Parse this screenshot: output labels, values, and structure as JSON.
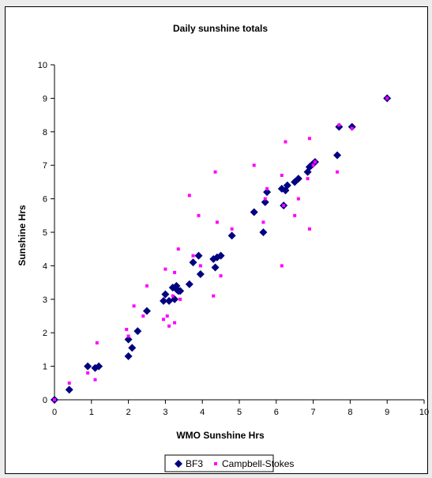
{
  "chart_data": {
    "type": "scatter",
    "title": "Daily sunshine totals",
    "xlabel": "WMO Sunshine Hrs",
    "ylabel": "Sunshine Hrs",
    "xlim": [
      0,
      10
    ],
    "ylim": [
      0,
      10
    ],
    "xticks": [
      "0",
      "1",
      "2",
      "3",
      "4",
      "5",
      "6",
      "7",
      "8",
      "9",
      "10"
    ],
    "yticks": [
      "0",
      "1",
      "2",
      "3",
      "4",
      "5",
      "6",
      "7",
      "8",
      "9",
      "10"
    ],
    "grid": false,
    "legend": "bottom",
    "series": [
      {
        "name": "BF3",
        "color": "#000080",
        "marker": "diamond",
        "points": [
          [
            0,
            0
          ],
          [
            0.4,
            0.3
          ],
          [
            0.9,
            1.0
          ],
          [
            1.1,
            0.95
          ],
          [
            1.2,
            1.0
          ],
          [
            2.0,
            1.8
          ],
          [
            2.0,
            1.3
          ],
          [
            2.1,
            1.55
          ],
          [
            2.25,
            2.05
          ],
          [
            2.5,
            2.65
          ],
          [
            2.95,
            2.95
          ],
          [
            3.0,
            3.15
          ],
          [
            3.1,
            2.95
          ],
          [
            3.2,
            3.35
          ],
          [
            3.25,
            3.0
          ],
          [
            3.3,
            3.3
          ],
          [
            3.3,
            3.4
          ],
          [
            3.35,
            3.25
          ],
          [
            3.4,
            3.25
          ],
          [
            3.65,
            3.45
          ],
          [
            3.75,
            4.1
          ],
          [
            3.9,
            4.3
          ],
          [
            3.95,
            3.75
          ],
          [
            4.3,
            4.2
          ],
          [
            4.35,
            3.95
          ],
          [
            4.4,
            4.25
          ],
          [
            4.5,
            4.3
          ],
          [
            4.8,
            4.9
          ],
          [
            5.4,
            5.6
          ],
          [
            5.65,
            5.0
          ],
          [
            5.7,
            5.9
          ],
          [
            5.75,
            6.2
          ],
          [
            6.15,
            6.3
          ],
          [
            6.2,
            5.8
          ],
          [
            6.25,
            6.25
          ],
          [
            6.3,
            6.4
          ],
          [
            6.5,
            6.5
          ],
          [
            6.6,
            6.6
          ],
          [
            6.85,
            6.8
          ],
          [
            6.9,
            6.95
          ],
          [
            6.95,
            7.0
          ],
          [
            7.0,
            7.05
          ],
          [
            7.05,
            7.1
          ],
          [
            7.65,
            7.3
          ],
          [
            7.7,
            8.15
          ],
          [
            8.05,
            8.15
          ],
          [
            9.0,
            9.0
          ]
        ]
      },
      {
        "name": "Campbell-Stokes",
        "color": "#ff00ff",
        "marker": "square",
        "points": [
          [
            0,
            0
          ],
          [
            0.4,
            0.5
          ],
          [
            0.9,
            0.8
          ],
          [
            1.1,
            0.6
          ],
          [
            1.15,
            1.7
          ],
          [
            1.95,
            2.1
          ],
          [
            2.0,
            1.9
          ],
          [
            2.15,
            2.8
          ],
          [
            2.4,
            2.5
          ],
          [
            2.5,
            3.4
          ],
          [
            2.95,
            2.4
          ],
          [
            3.0,
            3.9
          ],
          [
            3.05,
            2.5
          ],
          [
            3.1,
            2.2
          ],
          [
            3.2,
            3.1
          ],
          [
            3.25,
            3.8
          ],
          [
            3.25,
            2.3
          ],
          [
            3.35,
            4.5
          ],
          [
            3.4,
            3.0
          ],
          [
            3.65,
            6.1
          ],
          [
            3.75,
            4.3
          ],
          [
            3.9,
            5.5
          ],
          [
            3.95,
            4.0
          ],
          [
            4.3,
            3.1
          ],
          [
            4.35,
            6.8
          ],
          [
            4.4,
            5.3
          ],
          [
            4.5,
            3.7
          ],
          [
            4.8,
            5.1
          ],
          [
            5.4,
            7.0
          ],
          [
            5.65,
            5.3
          ],
          [
            5.7,
            6.0
          ],
          [
            5.75,
            6.3
          ],
          [
            6.15,
            6.7
          ],
          [
            6.15,
            4.0
          ],
          [
            6.2,
            5.8
          ],
          [
            6.25,
            7.7
          ],
          [
            6.5,
            5.5
          ],
          [
            6.6,
            6.0
          ],
          [
            6.85,
            6.6
          ],
          [
            6.9,
            7.8
          ],
          [
            6.9,
            5.1
          ],
          [
            7.0,
            7.0
          ],
          [
            7.05,
            7.1
          ],
          [
            7.65,
            6.8
          ],
          [
            7.7,
            8.2
          ],
          [
            8.05,
            8.1
          ],
          [
            9.0,
            9.0
          ]
        ]
      }
    ]
  }
}
